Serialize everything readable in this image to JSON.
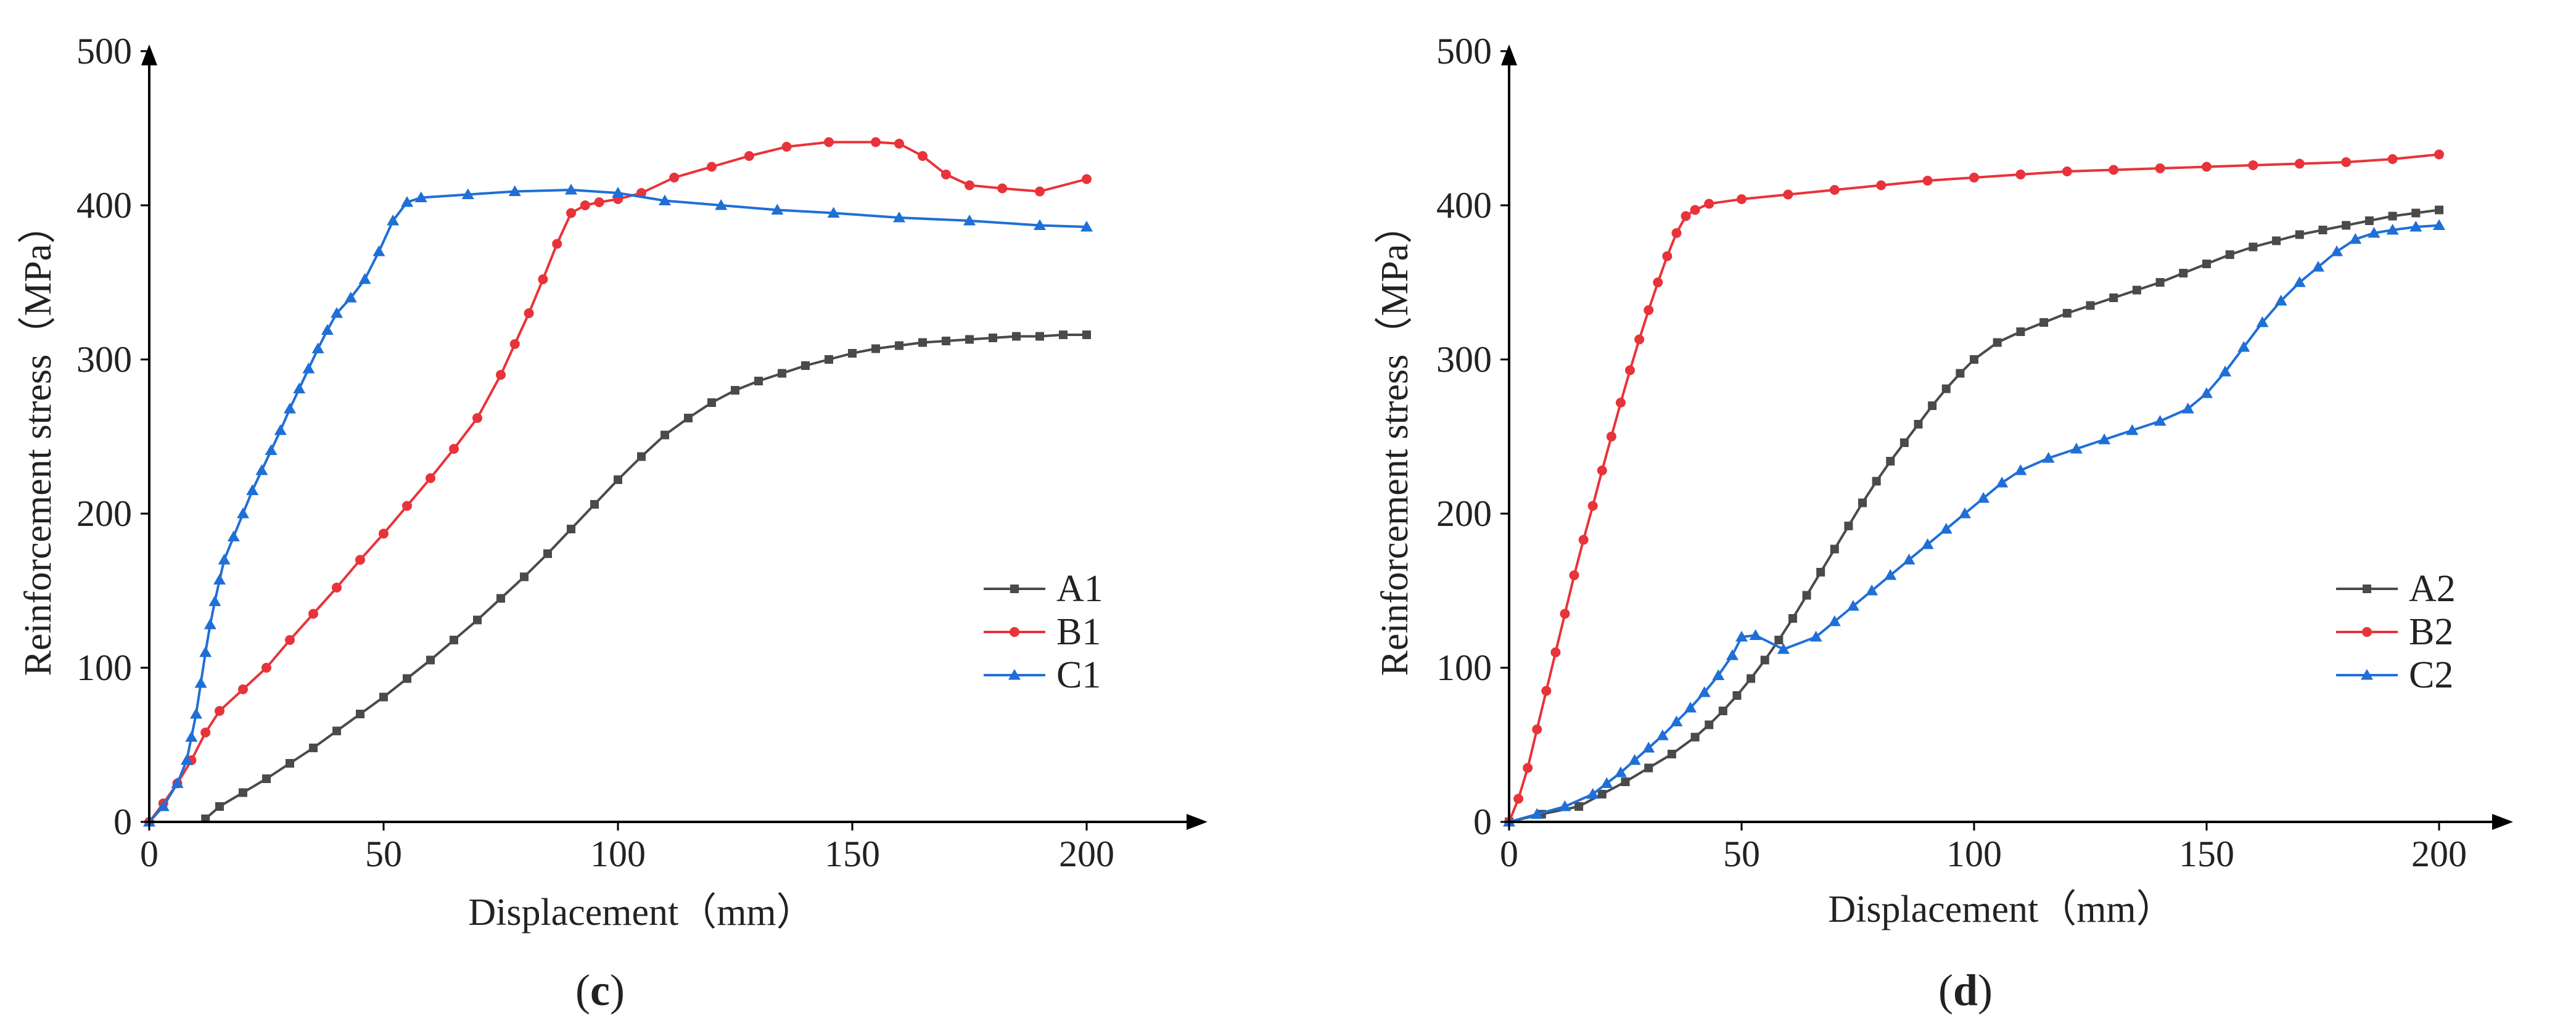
{
  "colors": {
    "A": "#4a4a4a",
    "B": "#e8333a",
    "C": "#1f6fd6",
    "axis": "#000000"
  },
  "chart_data": [
    {
      "type": "line",
      "panel_label": "c",
      "xlabel": "Displacement（mm）",
      "ylabel": "Reinforcement stress（MPa）",
      "xlim": [
        0,
        200
      ],
      "ylim": [
        0,
        500
      ],
      "xticks": [
        0,
        50,
        100,
        150,
        200
      ],
      "yticks": [
        0,
        100,
        200,
        300,
        400,
        500
      ],
      "legend_position": "right",
      "series": [
        {
          "name": "A1",
          "marker": "square",
          "color": "#4a4a4a",
          "x": [
            12,
            15,
            20,
            25,
            30,
            35,
            40,
            45,
            50,
            55,
            60,
            65,
            70,
            75,
            80,
            85,
            90,
            95,
            100,
            105,
            110,
            115,
            120,
            125,
            130,
            135,
            140,
            145,
            150,
            155,
            160,
            165,
            170,
            175,
            180,
            185,
            190,
            195,
            200
          ],
          "y": [
            2,
            10,
            19,
            28,
            38,
            48,
            59,
            70,
            81,
            93,
            105,
            118,
            131,
            145,
            159,
            174,
            190,
            206,
            222,
            237,
            251,
            262,
            272,
            280,
            286,
            291,
            296,
            300,
            304,
            307,
            309,
            311,
            312,
            313,
            314,
            315,
            315,
            316,
            316
          ]
        },
        {
          "name": "B1",
          "marker": "circle",
          "color": "#e8333a",
          "x": [
            0,
            3,
            6,
            9,
            12,
            15,
            20,
            25,
            30,
            35,
            40,
            45,
            50,
            55,
            60,
            65,
            70,
            75,
            78,
            81,
            84,
            87,
            90,
            93,
            96,
            100,
            105,
            112,
            120,
            128,
            136,
            145,
            155,
            160,
            165,
            170,
            175,
            182,
            190,
            200
          ],
          "y": [
            0,
            12,
            25,
            40,
            58,
            72,
            86,
            100,
            118,
            135,
            152,
            170,
            187,
            205,
            223,
            242,
            262,
            290,
            310,
            330,
            352,
            375,
            395,
            400,
            402,
            404,
            408,
            418,
            425,
            432,
            438,
            441,
            441,
            440,
            432,
            420,
            413,
            411,
            409,
            417
          ]
        },
        {
          "name": "C1",
          "marker": "triangle",
          "color": "#1f6fd6",
          "x": [
            0,
            3,
            6,
            8,
            9,
            10,
            11,
            12,
            13,
            14,
            15,
            16,
            18,
            20,
            22,
            24,
            26,
            28,
            30,
            32,
            34,
            36,
            38,
            40,
            43,
            46,
            49,
            52,
            55,
            58,
            68,
            78,
            90,
            100,
            110,
            122,
            134,
            146,
            160,
            175,
            190,
            200
          ],
          "y": [
            0,
            10,
            25,
            40,
            55,
            70,
            90,
            110,
            128,
            143,
            157,
            170,
            185,
            200,
            215,
            228,
            241,
            254,
            268,
            281,
            294,
            307,
            319,
            330,
            340,
            352,
            370,
            390,
            402,
            405,
            407,
            409,
            410,
            408,
            403,
            400,
            397,
            395,
            392,
            390,
            387,
            386
          ]
        }
      ]
    },
    {
      "type": "line",
      "panel_label": "d",
      "xlabel": "Displacement（mm）",
      "ylabel": "Reinforcement stress（MPa）",
      "xlim": [
        0,
        200
      ],
      "ylim": [
        0,
        500
      ],
      "xticks": [
        0,
        50,
        100,
        150,
        200
      ],
      "yticks": [
        0,
        100,
        200,
        300,
        400,
        500
      ],
      "legend_position": "right",
      "series": [
        {
          "name": "A2",
          "marker": "square",
          "color": "#4a4a4a",
          "x": [
            0,
            7,
            15,
            20,
            25,
            30,
            35,
            40,
            43,
            46,
            49,
            52,
            55,
            58,
            61,
            64,
            67,
            70,
            73,
            76,
            79,
            82,
            85,
            88,
            91,
            94,
            97,
            100,
            105,
            110,
            115,
            120,
            125,
            130,
            135,
            140,
            145,
            150,
            155,
            160,
            165,
            170,
            175,
            180,
            185,
            190,
            195,
            200
          ],
          "y": [
            0,
            5,
            10,
            18,
            26,
            35,
            44,
            55,
            63,
            72,
            82,
            93,
            105,
            118,
            132,
            147,
            162,
            177,
            192,
            207,
            221,
            234,
            246,
            258,
            270,
            281,
            291,
            300,
            311,
            318,
            324,
            330,
            335,
            340,
            345,
            350,
            356,
            362,
            368,
            373,
            377,
            381,
            384,
            387,
            390,
            393,
            395,
            397
          ]
        },
        {
          "name": "B2",
          "marker": "circle",
          "color": "#e8333a",
          "x": [
            0,
            2,
            4,
            6,
            8,
            10,
            12,
            14,
            16,
            18,
            20,
            22,
            24,
            26,
            28,
            30,
            32,
            34,
            36,
            38,
            40,
            43,
            50,
            60,
            70,
            80,
            90,
            100,
            110,
            120,
            130,
            140,
            150,
            160,
            170,
            180,
            190,
            200
          ],
          "y": [
            0,
            15,
            35,
            60,
            85,
            110,
            135,
            160,
            183,
            205,
            228,
            250,
            272,
            293,
            313,
            332,
            350,
            367,
            382,
            393,
            397,
            401,
            404,
            407,
            410,
            413,
            416,
            418,
            420,
            422,
            423,
            424,
            425,
            426,
            427,
            428,
            430,
            433
          ]
        },
        {
          "name": "C2",
          "marker": "triangle",
          "color": "#1f6fd6",
          "x": [
            0,
            6,
            12,
            18,
            21,
            24,
            27,
            30,
            33,
            36,
            39,
            42,
            45,
            48,
            50,
            53,
            59,
            66,
            70,
            74,
            78,
            82,
            86,
            90,
            94,
            98,
            102,
            106,
            110,
            116,
            122,
            128,
            134,
            140,
            146,
            150,
            154,
            158,
            162,
            166,
            170,
            174,
            178,
            182,
            186,
            190,
            195,
            200
          ],
          "y": [
            0,
            5,
            10,
            18,
            25,
            32,
            40,
            48,
            56,
            65,
            74,
            84,
            95,
            108,
            120,
            121,
            112,
            120,
            130,
            140,
            150,
            160,
            170,
            180,
            190,
            200,
            210,
            220,
            228,
            236,
            242,
            248,
            254,
            260,
            268,
            278,
            292,
            308,
            324,
            338,
            350,
            360,
            370,
            378,
            382,
            384,
            386,
            387
          ]
        }
      ]
    }
  ]
}
